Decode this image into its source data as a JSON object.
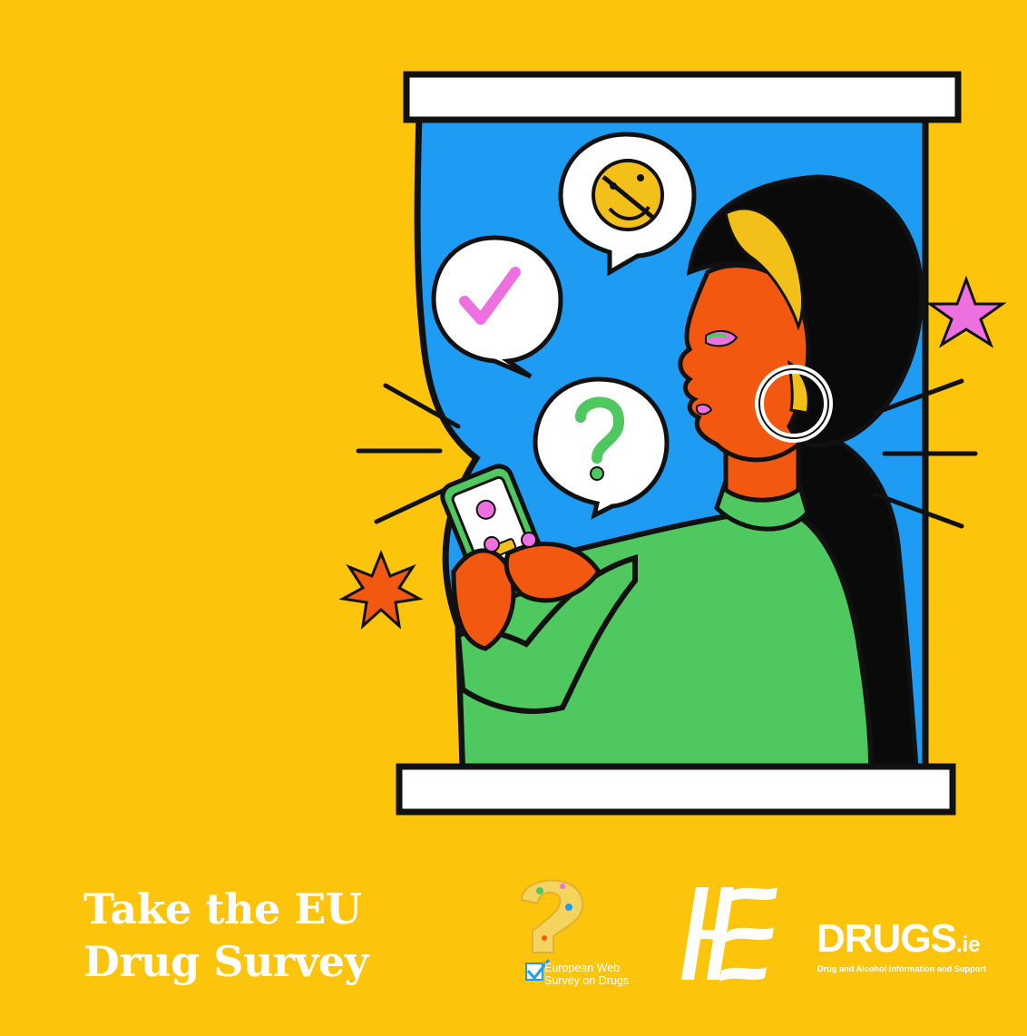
{
  "colors": {
    "background": "#FCC40B",
    "window_blue": "#1E9BF2",
    "outline": "#111111",
    "sweater_green": "#4FC860",
    "skin_orange": "#F2580F",
    "hair_black": "#0A0A0A",
    "accent_pink": "#EE6FE0"
  },
  "headline": {
    "line1": "Take the EU",
    "line2": "Drug Survey"
  },
  "logos": {
    "ewsd": {
      "line1": "European Web",
      "line2": "Survey on Drugs"
    },
    "hse": {
      "icon": "hse-logo-icon"
    },
    "drugs": {
      "name": "DRUGS",
      "tld": ".ie",
      "tagline": "Drug and Alcohol Information and Support"
    }
  },
  "illustration": {
    "subject": "woman-using-phone-in-window",
    "bubbles": [
      "checkmark-icon",
      "emoji-face-icon",
      "question-mark-icon"
    ],
    "stars": [
      "pink-star-icon",
      "orange-burst-icon"
    ]
  }
}
